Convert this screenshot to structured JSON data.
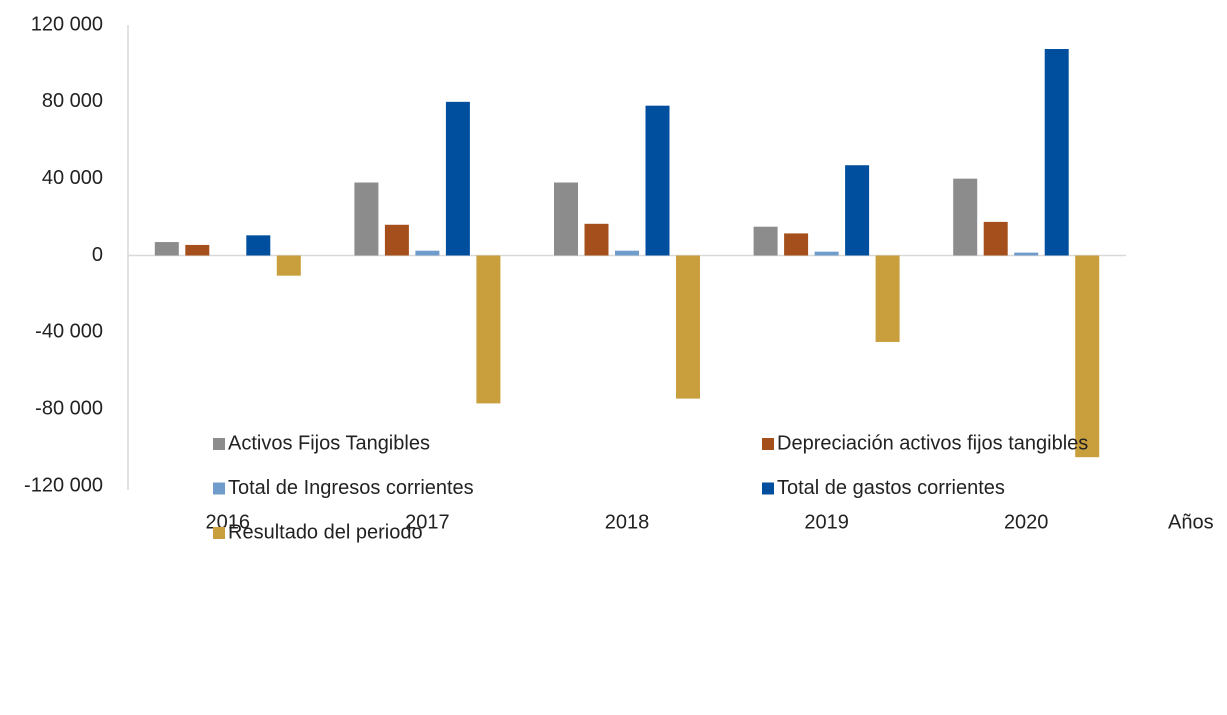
{
  "chart_data": {
    "type": "bar",
    "x_label": "Años",
    "categories": [
      "2016",
      "2017",
      "2018",
      "2019",
      "2020"
    ],
    "series": [
      {
        "name": "Activos Fijos Tangibles",
        "color": "#8c8c8c",
        "values": [
          7000,
          38000,
          38000,
          15000,
          40000
        ]
      },
      {
        "name": "Depreciación activos fijos tangibles",
        "color": "#a5501c",
        "values": [
          5500,
          16000,
          16500,
          11500,
          17500
        ]
      },
      {
        "name": "Total de Ingresos corrientes",
        "color": "#6f9ccb",
        "values": [
          0,
          2500,
          2500,
          2000,
          1500
        ]
      },
      {
        "name": "Total de gastos corrientes",
        "color": "#004f9f",
        "values": [
          10500,
          80000,
          78000,
          47000,
          107500
        ]
      },
      {
        "name": "Resultado del periodo",
        "color": "#c89f3c",
        "values": [
          -10500,
          -77000,
          -74500,
          -45000,
          -105000
        ]
      }
    ],
    "ylim": [
      -120000,
      120000
    ],
    "yticks": [
      {
        "value": -120000,
        "label": "-120 000"
      },
      {
        "value": -80000,
        "label": "-80 000"
      },
      {
        "value": -40000,
        "label": "-40 000"
      },
      0,
      {
        "value": 40000,
        "label": "40 000"
      },
      {
        "value": 80000,
        "label": "80 000"
      },
      {
        "value": 120000,
        "label": "120 000"
      }
    ],
    "grid": false,
    "legend": "bottom"
  }
}
